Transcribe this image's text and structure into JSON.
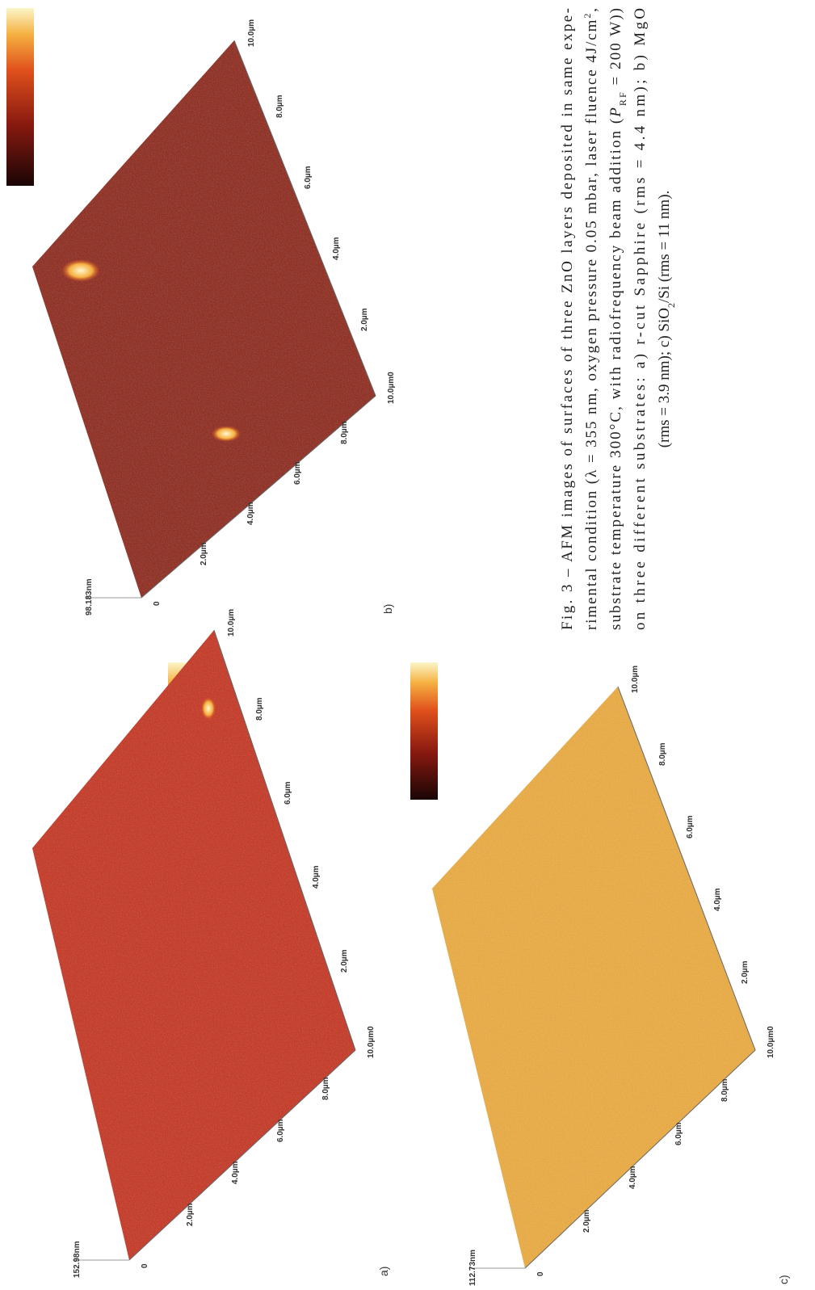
{
  "panels": [
    {
      "label": "a)",
      "height": "152.98nm",
      "color": "#c6301c",
      "front_axis": [
        "0",
        "2.0µm",
        "4.0µm",
        "6.0µm",
        "8.0µm",
        "10.0µm0"
      ],
      "side_axis": [
        "2.0µm",
        "4.0µm",
        "6.0µm",
        "8.0µm",
        "10.0µm"
      ]
    },
    {
      "label": "b)",
      "height": "98.183nm",
      "color": "#8c2417",
      "front_axis": [
        "0",
        "2.0µm",
        "4.0µm",
        "6.0µm",
        "8.0µm",
        "10.0µm0"
      ],
      "side_axis": [
        "2.0µm",
        "4.0µm",
        "6.0µm",
        "8.0µm",
        "10.0µm"
      ]
    },
    {
      "label": "c)",
      "height": "112.73nm",
      "color": "#eeaa3a",
      "front_axis": [
        "0",
        "2.0µm",
        "4.0µm",
        "6.0µm",
        "8.0µm",
        "10.0µm0"
      ],
      "side_axis": [
        "2.0µm",
        "4.0µm",
        "6.0µm",
        "8.0µm",
        "10.0µm"
      ]
    }
  ],
  "caption": [
    [
      "Fig. 3 – AFM images of surfaces of three ZnO layers deposited in same expe-"
    ],
    [
      "rimental condition (λ = 355 nm, oxygen pressure 0.05 mbar, laser fluence 4J/cm",
      {
        "text": "2",
        "script": "sup"
      },
      ","
    ],
    [
      "substrate temperature 300°C, with radiofrequency beam addition (",
      {
        "text": "P",
        "style": "italic"
      },
      {
        "text": "RF",
        "script": "sub"
      },
      " = 200 W))"
    ],
    [
      "on three different substrates: a) r-cut Sapphire (rms = 4.4 nm); b) MgO"
    ],
    [
      "(rms = 3.9 nm); c) SiO",
      {
        "text": "2",
        "script": "sub"
      },
      "/Si (rms = 11 nm)."
    ]
  ]
}
